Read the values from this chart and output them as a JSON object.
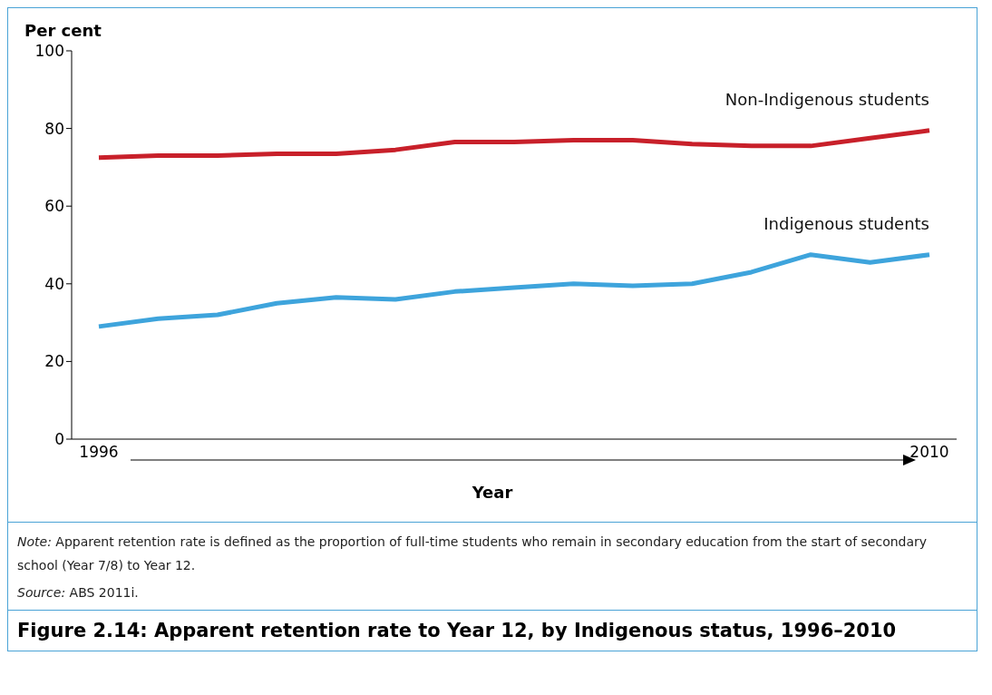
{
  "chart_data": {
    "type": "line",
    "title": "Figure 2.14: Apparent retention rate to Year 12, by Indigenous status, 1996–2010",
    "ylabel": "Per cent",
    "xlabel": "Year",
    "categories": [
      "1996",
      null,
      null,
      null,
      null,
      null,
      null,
      null,
      null,
      null,
      null,
      null,
      null,
      null,
      "2010"
    ],
    "series": [
      {
        "name": "Non-Indigenous students",
        "color": "#c8202a",
        "values": [
          72.5,
          73,
          73,
          73.5,
          73.5,
          74.5,
          76.5,
          76.5,
          77,
          77,
          76,
          75.5,
          75.5,
          77.5,
          79.5
        ]
      },
      {
        "name": "Indigenous students",
        "color": "#3ea4dc",
        "values": [
          29,
          31,
          32,
          35,
          36.5,
          36,
          38,
          39,
          40,
          39.5,
          40,
          43,
          47.5,
          45.5,
          47.5
        ]
      }
    ],
    "ylim": [
      0,
      100
    ],
    "yticks": [
      0,
      20,
      40,
      60,
      80,
      100
    ],
    "grid": false,
    "legend": false,
    "marker": "none",
    "line_style": "solid",
    "annotations": [
      "Note: Apparent retention rate is defined as the proportion of full-time students who remain in secondary education from the start of secondary school (Year 7/8) to Year 12.",
      "Source: ABS 2011i."
    ]
  }
}
